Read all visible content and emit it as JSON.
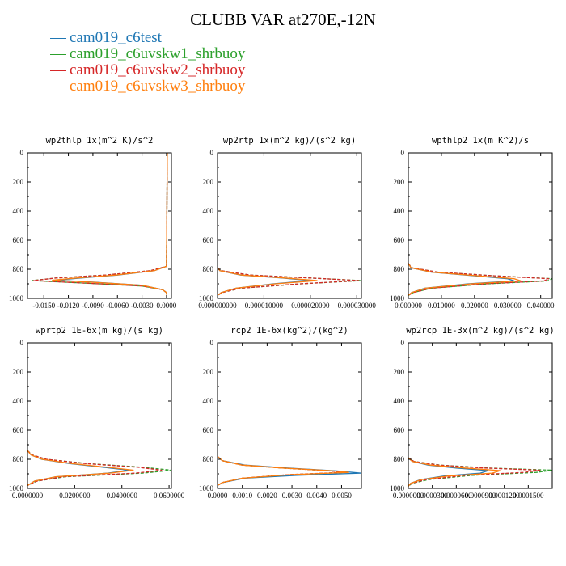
{
  "title": "CLUBB VAR at270E,-12N",
  "legend": [
    {
      "label": "cam019_c6test",
      "color": "#1f77b4"
    },
    {
      "label": "cam019_c6uvskw1_shrbuoy",
      "color": "#2ca02c"
    },
    {
      "label": "cam019_c6uvskw2_shrbuoy",
      "color": "#d62728"
    },
    {
      "label": "cam019_c6uvskw3_shrbuoy",
      "color": "#ff7f0e"
    }
  ],
  "chart_data": [
    {
      "type": "line",
      "title": "wp2thlp  1x(m^2 K)/s^2",
      "xlim": [
        -0.017,
        0.0006
      ],
      "ylim": [
        1000,
        0
      ],
      "xticks": [
        -0.015,
        -0.012,
        -0.009,
        -0.006,
        -0.003,
        0.0
      ],
      "xtick_labels": [
        "-0.0150",
        "-0.0120",
        "-0.0090",
        "-0.0060",
        "-0.0030",
        "0.0000"
      ],
      "yticks": [
        0,
        200,
        400,
        600,
        800,
        1000
      ],
      "ytick_labels": [
        "0",
        "200",
        "400",
        "600",
        "800",
        "1000"
      ],
      "series": [
        {
          "name": "cam019_c6test",
          "dashed": false,
          "y": [
            0,
            780,
            810,
            840,
            860,
            875,
            890,
            910,
            940,
            960,
            975
          ],
          "x": [
            0.0001,
            0.0,
            -0.0015,
            -0.006,
            -0.0105,
            -0.0135,
            -0.0085,
            -0.003,
            -0.0005,
            0.0,
            0.0
          ]
        },
        {
          "name": "cam019_c6uvskw1_shrbuoy",
          "dashed": true,
          "y": [
            0,
            780,
            810,
            840,
            860,
            878,
            895,
            915,
            940,
            960,
            975
          ],
          "x": [
            0.0001,
            0.0,
            -0.002,
            -0.0075,
            -0.0135,
            -0.0165,
            -0.01,
            -0.003,
            -0.0005,
            0.0,
            0.0
          ]
        },
        {
          "name": "cam019_c6uvskw2_shrbuoy",
          "dashed": true,
          "y": [
            0,
            780,
            810,
            840,
            860,
            878,
            895,
            915,
            940,
            960,
            975
          ],
          "x": [
            0.0001,
            0.0,
            -0.002,
            -0.0075,
            -0.0135,
            -0.0163,
            -0.01,
            -0.003,
            -0.0005,
            0.0,
            0.0
          ]
        },
        {
          "name": "cam019_c6uvskw3_shrbuoy",
          "dashed": false,
          "y": [
            0,
            780,
            810,
            840,
            860,
            875,
            890,
            910,
            940,
            960,
            975
          ],
          "x": [
            0.0001,
            0.0,
            -0.0015,
            -0.0062,
            -0.011,
            -0.014,
            -0.0088,
            -0.003,
            -0.0005,
            0.0,
            0.0
          ]
        }
      ]
    },
    {
      "type": "line",
      "title": "wp2rtp  1x(m^2 kg)/(s^2 kg)",
      "xlim": [
        0,
        3.1e-05
      ],
      "ylim": [
        1000,
        0
      ],
      "xticks": [
        0,
        1e-05,
        2e-05,
        3e-05
      ],
      "xtick_labels": [
        "0.000000000",
        "0.000010000",
        "0.000020000",
        "0.000030000"
      ],
      "yticks": [
        0,
        200,
        400,
        600,
        800,
        1000
      ],
      "ytick_labels": [
        "0",
        "200",
        "400",
        "600",
        "800",
        "1000"
      ],
      "series": [
        {
          "name": "cam019_c6test",
          "dashed": false,
          "y": [
            790,
            810,
            840,
            860,
            878,
            900,
            930,
            960,
            980
          ],
          "x": [
            0,
            5e-07,
            5e-06,
            1.4e-05,
            2e-05,
            1.2e-05,
            4e-06,
            8e-07,
            0
          ]
        },
        {
          "name": "cam019_c6uvskw1_shrbuoy",
          "dashed": true,
          "y": [
            790,
            810,
            840,
            860,
            878,
            900,
            930,
            960,
            980
          ],
          "x": [
            0,
            8e-07,
            7e-06,
            2e-05,
            3.1e-05,
            1.8e-05,
            5e-06,
            1e-06,
            0
          ]
        },
        {
          "name": "cam019_c6uvskw2_shrbuoy",
          "dashed": true,
          "y": [
            790,
            810,
            840,
            860,
            878,
            900,
            930,
            960,
            980
          ],
          "x": [
            0,
            8e-07,
            7e-06,
            2e-05,
            3.05e-05,
            1.78e-05,
            5e-06,
            1e-06,
            0
          ]
        },
        {
          "name": "cam019_c6uvskw3_shrbuoy",
          "dashed": false,
          "y": [
            790,
            810,
            840,
            860,
            878,
            900,
            930,
            960,
            980
          ],
          "x": [
            0,
            5e-07,
            5.2e-06,
            1.45e-05,
            2.15e-05,
            1.25e-05,
            4e-06,
            8e-07,
            0
          ]
        }
      ]
    },
    {
      "type": "line",
      "title": "wpthlp2  1x(m K^2)/s",
      "xlim": [
        0,
        0.0435
      ],
      "ylim": [
        1000,
        0
      ],
      "xticks": [
        0,
        0.01,
        0.02,
        0.03,
        0.04
      ],
      "xtick_labels": [
        "0.000000",
        "0.010000",
        "0.020000",
        "0.030000",
        "0.040000"
      ],
      "yticks": [
        0,
        200,
        400,
        600,
        800,
        1000
      ],
      "ytick_labels": [
        "0",
        "200",
        "400",
        "600",
        "800",
        "1000"
      ],
      "series": [
        {
          "name": "cam019_c6test",
          "dashed": false,
          "y": [
            760,
            790,
            820,
            845,
            865,
            880,
            900,
            930,
            960,
            980
          ],
          "x": [
            0,
            0.0008,
            0.007,
            0.02,
            0.03,
            0.032,
            0.018,
            0.005,
            0.001,
            0
          ]
        },
        {
          "name": "cam019_c6uvskw1_shrbuoy",
          "dashed": true,
          "y": [
            760,
            790,
            820,
            845,
            865,
            880,
            900,
            930,
            960,
            980
          ],
          "x": [
            0,
            0.001,
            0.009,
            0.026,
            0.0435,
            0.042,
            0.024,
            0.007,
            0.0015,
            0
          ]
        },
        {
          "name": "cam019_c6uvskw2_shrbuoy",
          "dashed": true,
          "y": [
            760,
            790,
            820,
            845,
            865,
            880,
            900,
            930,
            960,
            980
          ],
          "x": [
            0,
            0.001,
            0.009,
            0.026,
            0.0425,
            0.041,
            0.023,
            0.007,
            0.0015,
            0
          ]
        },
        {
          "name": "cam019_c6uvskw3_shrbuoy",
          "dashed": false,
          "y": [
            760,
            790,
            820,
            845,
            865,
            880,
            900,
            930,
            960,
            980
          ],
          "x": [
            0,
            0.0008,
            0.0072,
            0.021,
            0.032,
            0.034,
            0.019,
            0.0052,
            0.001,
            0
          ]
        }
      ]
    },
    {
      "type": "line",
      "title": "wprtp2  1E-6x(m kg)/(s kg)",
      "xlim": [
        0,
        0.061
      ],
      "ylim": [
        1000,
        0
      ],
      "xticks": [
        0,
        0.02,
        0.04,
        0.06
      ],
      "xtick_labels": [
        "0.0000000",
        "0.0200000",
        "0.0400000",
        "0.0600000"
      ],
      "yticks": [
        0,
        200,
        400,
        600,
        800,
        1000
      ],
      "ytick_labels": [
        "0",
        "200",
        "400",
        "600",
        "800",
        "1000"
      ],
      "series": [
        {
          "name": "cam019_c6test",
          "dashed": false,
          "y": [
            740,
            770,
            800,
            830,
            855,
            875,
            895,
            920,
            950,
            980
          ],
          "x": [
            0,
            0.0015,
            0.006,
            0.018,
            0.032,
            0.043,
            0.034,
            0.012,
            0.003,
            0
          ]
        },
        {
          "name": "cam019_c6uvskw1_shrbuoy",
          "dashed": true,
          "y": [
            740,
            770,
            800,
            830,
            855,
            875,
            895,
            920,
            950,
            980
          ],
          "x": [
            0,
            0.002,
            0.008,
            0.026,
            0.049,
            0.061,
            0.049,
            0.016,
            0.004,
            0
          ]
        },
        {
          "name": "cam019_c6uvskw2_shrbuoy",
          "dashed": true,
          "y": [
            740,
            770,
            800,
            830,
            855,
            875,
            895,
            920,
            950,
            980
          ],
          "x": [
            0,
            0.002,
            0.008,
            0.025,
            0.047,
            0.057,
            0.046,
            0.015,
            0.004,
            0
          ]
        },
        {
          "name": "cam019_c6uvskw3_shrbuoy",
          "dashed": false,
          "y": [
            740,
            770,
            800,
            830,
            855,
            875,
            895,
            920,
            950,
            980
          ],
          "x": [
            0,
            0.0015,
            0.0062,
            0.019,
            0.034,
            0.045,
            0.035,
            0.012,
            0.003,
            0
          ]
        }
      ]
    },
    {
      "type": "line",
      "title": "rcp2  1E-6x(kg^2)/(kg^2)",
      "xlim": [
        0,
        0.0058
      ],
      "ylim": [
        1000,
        0
      ],
      "xticks": [
        0,
        0.001,
        0.002,
        0.003,
        0.004,
        0.005
      ],
      "xtick_labels": [
        "0.0000",
        "0.0010",
        "0.0020",
        "0.0030",
        "0.0040",
        "0.0050"
      ],
      "yticks": [
        0,
        200,
        400,
        600,
        800,
        1000
      ],
      "ytick_labels": [
        "0",
        "200",
        "400",
        "600",
        "800",
        "1000"
      ],
      "series": [
        {
          "name": "cam019_c6test",
          "dashed": false,
          "y": [
            780,
            810,
            840,
            860,
            880,
            895,
            910,
            930,
            960,
            980
          ],
          "x": [
            0,
            0.0002,
            0.0011,
            0.0028,
            0.0048,
            0.0058,
            0.0032,
            0.0011,
            0.0002,
            0
          ]
        },
        {
          "name": "cam019_c6uvskw1_shrbuoy",
          "dashed": true,
          "y": [
            780,
            810,
            840,
            860,
            878,
            890,
            905,
            930,
            960,
            980
          ],
          "x": [
            0,
            0.0002,
            0.001,
            0.0026,
            0.0044,
            0.0052,
            0.003,
            0.001,
            0.0002,
            0
          ]
        },
        {
          "name": "cam019_c6uvskw2_shrbuoy",
          "dashed": true,
          "y": [
            780,
            810,
            840,
            860,
            878,
            890,
            905,
            930,
            960,
            980
          ],
          "x": [
            0,
            0.0002,
            0.001,
            0.0026,
            0.0044,
            0.0051,
            0.0029,
            0.001,
            0.0002,
            0
          ]
        },
        {
          "name": "cam019_c6uvskw3_shrbuoy",
          "dashed": false,
          "y": [
            780,
            810,
            840,
            860,
            878,
            890,
            905,
            930,
            960,
            980
          ],
          "x": [
            0,
            0.0002,
            0.001,
            0.0026,
            0.0045,
            0.0053,
            0.003,
            0.001,
            0.0002,
            0
          ]
        }
      ]
    },
    {
      "type": "line",
      "title": "wp2rcp  1E-3x(m^2 kg)/(s^2 kg)",
      "xlim": [
        0,
        0.00018
      ],
      "ylim": [
        1000,
        0
      ],
      "xticks": [
        0,
        3e-05,
        6e-05,
        9e-05,
        0.00012,
        0.00015
      ],
      "xtick_labels": [
        "0.0000000",
        "0.0000300",
        "0.0000600",
        "0.0000900",
        "0.0001200",
        "0.0001500"
      ],
      "yticks": [
        0,
        200,
        400,
        600,
        800,
        1000
      ],
      "ytick_labels": [
        "0",
        "200",
        "400",
        "600",
        "800",
        "1000"
      ],
      "series": [
        {
          "name": "cam019_c6test",
          "dashed": false,
          "y": [
            790,
            815,
            840,
            860,
            878,
            895,
            915,
            940,
            965,
            985
          ],
          "x": [
            0,
            5e-06,
            2.5e-05,
            6e-05,
            0.0001,
            9e-05,
            4.5e-05,
            1.5e-05,
            3e-06,
            0
          ]
        },
        {
          "name": "cam019_c6uvskw1_shrbuoy",
          "dashed": true,
          "y": [
            790,
            815,
            840,
            860,
            875,
            890,
            910,
            940,
            965,
            985
          ],
          "x": [
            0,
            7e-06,
            4e-05,
            0.0001,
            0.00018,
            0.00016,
            8e-05,
            2.5e-05,
            5e-06,
            0
          ]
        },
        {
          "name": "cam019_c6uvskw2_shrbuoy",
          "dashed": true,
          "y": [
            790,
            815,
            840,
            860,
            875,
            890,
            910,
            940,
            965,
            985
          ],
          "x": [
            0,
            7e-06,
            3.8e-05,
            9.5e-05,
            0.000165,
            0.000145,
            7.2e-05,
            2.2e-05,
            4e-06,
            0
          ]
        },
        {
          "name": "cam019_c6uvskw3_shrbuoy",
          "dashed": false,
          "y": [
            790,
            815,
            840,
            860,
            878,
            895,
            915,
            940,
            965,
            985
          ],
          "x": [
            0,
            5e-06,
            2.8e-05,
            7e-05,
            0.000115,
            0.000105,
            5e-05,
            1.6e-05,
            3e-06,
            0
          ]
        }
      ]
    }
  ]
}
